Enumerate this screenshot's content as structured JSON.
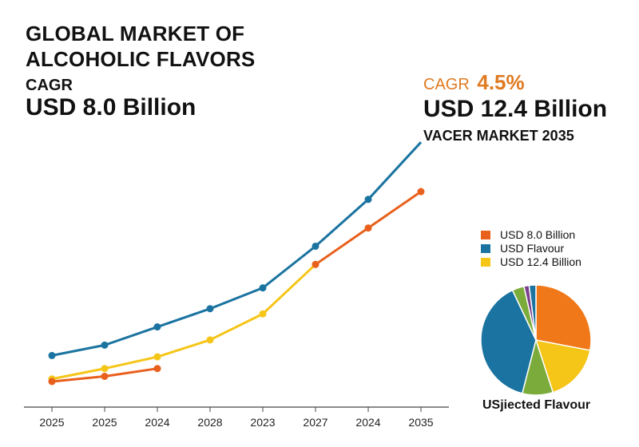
{
  "header": {
    "title_line1": "GLOBAL MARKET OF",
    "title_line2": "ALCOHOLIC FLAVORS",
    "cagr_label": "CAGR",
    "start_value": "USD 8.0 Billion"
  },
  "callout": {
    "cagr_label": "CAGR",
    "cagr_value": "4.5%",
    "end_value": "USD 12.4 Billion",
    "market_label": "VACER MARKET 2035"
  },
  "legend": [
    {
      "label": "USD 8.0 Billion",
      "color": "#e8601c"
    },
    {
      "label": "USD Flavour",
      "color": "#1a73a0"
    },
    {
      "label": "USD 12.4 Billion",
      "color": "#f5c518"
    }
  ],
  "pie_label": "USjiected Flavour",
  "colors": {
    "blue": "#1a73a0",
    "orange": "#e8601c",
    "yellow": "#f5c518",
    "pie_orange": "#f07818",
    "pie_yellow": "#f5c518",
    "pie_green": "#7bab3a",
    "pie_blue": "#1a73a0",
    "pie_purple": "#7a3f8f",
    "axis": "#444444"
  },
  "chart_data": [
    {
      "type": "line",
      "categories": [
        "2025",
        "2025",
        "2024",
        "2028",
        "2023",
        "2027",
        "2024",
        "2035"
      ],
      "xlabel": "",
      "ylabel": "",
      "ylim": [
        0,
        10
      ],
      "grid": false,
      "series": [
        {
          "color": "#1a73a0",
          "values": [
            1.0,
            1.4,
            2.1,
            2.8,
            3.6,
            5.2,
            7.0,
            9.2
          ]
        },
        {
          "color": "#f5c518",
          "values": [
            0.1,
            0.5,
            0.95,
            1.6,
            2.6,
            4.5,
            null,
            null
          ]
        },
        {
          "color": "#e8601c",
          "values": [
            0.0,
            0.2,
            0.5,
            null,
            null,
            4.5,
            5.9,
            7.3
          ]
        }
      ]
    },
    {
      "type": "pie",
      "title": "USjiected Flavour",
      "slices": [
        {
          "value": 28,
          "color": "#f07818"
        },
        {
          "value": 17,
          "color": "#f5c518"
        },
        {
          "value": 9,
          "color": "#7bab3a"
        },
        {
          "value": 39,
          "color": "#1a73a0"
        },
        {
          "value": 3.5,
          "color": "#7bab3a"
        },
        {
          "value": 1.5,
          "color": "#7a3f8f"
        },
        {
          "value": 2,
          "color": "#1a73a0"
        }
      ]
    }
  ]
}
